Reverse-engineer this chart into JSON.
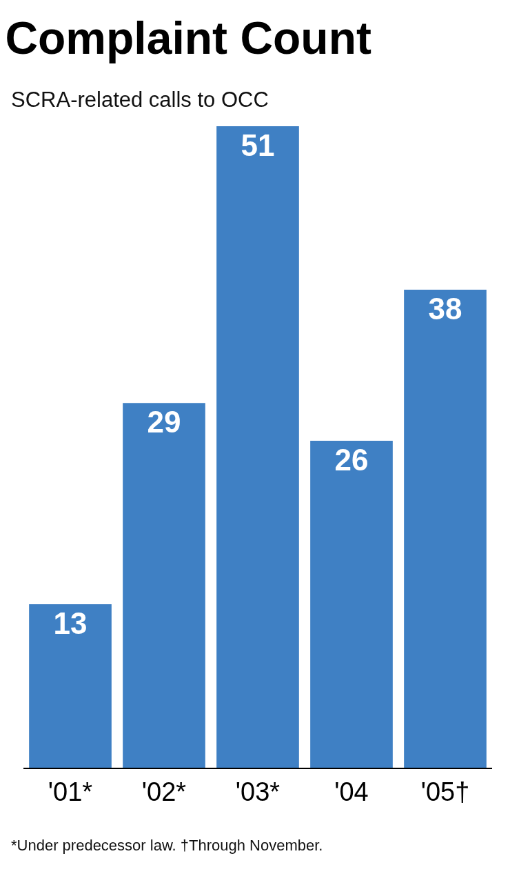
{
  "chart_data": {
    "type": "bar",
    "title": "Complaint Count",
    "subtitle": "SCRA-related calls to OCC",
    "categories": [
      "'01*",
      "'02*",
      "'03*",
      "'04",
      "'05†"
    ],
    "values": [
      13,
      29,
      51,
      26,
      38
    ],
    "color": "#3f80c4",
    "data_labels": true,
    "annotations": [
      "*Under predecessor law. †Through November."
    ]
  }
}
